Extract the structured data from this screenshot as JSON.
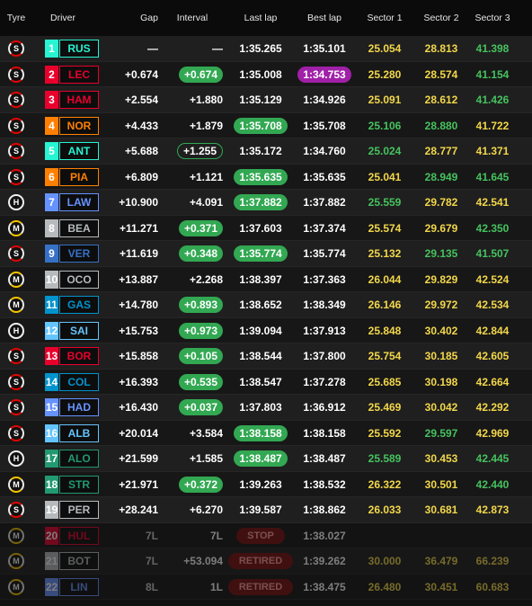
{
  "header": {
    "tyre": "Tyre",
    "driver": "Driver",
    "gap": "Gap",
    "interval": "Interval",
    "last_lap": "Last lap",
    "best_lap": "Best lap",
    "sector1": "Sector 1",
    "sector2": "Sector 2",
    "sector3": "Sector 3"
  },
  "colors": {
    "personal_best": "#32a852",
    "overall_best": "#a020a8",
    "sector_yellow": "#f2d74a",
    "sector_green": "#46c25e",
    "retired": "#7a1010"
  },
  "rows": [
    {
      "tyre": "S",
      "tyre_type": "soft",
      "pos": "1",
      "code": "RUS",
      "team_color": "#27f4d2",
      "gap": "—",
      "interval": "—",
      "interval_style": "",
      "last": "1:35.265",
      "last_style": "",
      "best": "1:35.101",
      "best_style": "",
      "s1": "25.054",
      "s1c": "yellow",
      "s2": "28.813",
      "s2c": "yellow",
      "s3": "41.398",
      "s3c": "green"
    },
    {
      "tyre": "S",
      "tyre_type": "soft",
      "pos": "2",
      "code": "LEC",
      "team_color": "#e8002d",
      "gap": "+0.674",
      "interval": "+0.674",
      "interval_style": "green",
      "last": "1:35.008",
      "last_style": "",
      "best": "1:34.753",
      "best_style": "purple",
      "s1": "25.280",
      "s1c": "yellow",
      "s2": "28.574",
      "s2c": "yellow",
      "s3": "41.154",
      "s3c": "green"
    },
    {
      "tyre": "S",
      "tyre_type": "soft",
      "pos": "3",
      "code": "HAM",
      "team_color": "#e8002d",
      "gap": "+2.554",
      "interval": "+1.880",
      "interval_style": "",
      "last": "1:35.129",
      "last_style": "",
      "best": "1:34.926",
      "best_style": "",
      "s1": "25.091",
      "s1c": "yellow",
      "s2": "28.612",
      "s2c": "yellow",
      "s3": "41.426",
      "s3c": "green"
    },
    {
      "tyre": "S",
      "tyre_type": "soft",
      "pos": "4",
      "code": "NOR",
      "team_color": "#ff8000",
      "gap": "+4.433",
      "interval": "+1.879",
      "interval_style": "",
      "last": "1:35.708",
      "last_style": "green",
      "best": "1:35.708",
      "best_style": "",
      "s1": "25.106",
      "s1c": "green",
      "s2": "28.880",
      "s2c": "green",
      "s3": "41.722",
      "s3c": "yellow"
    },
    {
      "tyre": "S",
      "tyre_type": "soft",
      "pos": "5",
      "code": "ANT",
      "team_color": "#27f4d2",
      "gap": "+5.688",
      "interval": "+1.255",
      "interval_style": "outline",
      "last": "1:35.172",
      "last_style": "",
      "best": "1:34.760",
      "best_style": "",
      "s1": "25.024",
      "s1c": "green",
      "s2": "28.777",
      "s2c": "yellow",
      "s3": "41.371",
      "s3c": "yellow"
    },
    {
      "tyre": "S",
      "tyre_type": "soft",
      "pos": "6",
      "code": "PIA",
      "team_color": "#ff8000",
      "gap": "+6.809",
      "interval": "+1.121",
      "interval_style": "",
      "last": "1:35.635",
      "last_style": "green",
      "best": "1:35.635",
      "best_style": "",
      "s1": "25.041",
      "s1c": "yellow",
      "s2": "28.949",
      "s2c": "green",
      "s3": "41.645",
      "s3c": "green"
    },
    {
      "tyre": "H",
      "tyre_type": "hard",
      "pos": "7",
      "code": "LAW",
      "team_color": "#6692ff",
      "gap": "+10.900",
      "interval": "+4.091",
      "interval_style": "",
      "last": "1:37.882",
      "last_style": "green",
      "best": "1:37.882",
      "best_style": "",
      "s1": "25.559",
      "s1c": "green",
      "s2": "29.782",
      "s2c": "yellow",
      "s3": "42.541",
      "s3c": "yellow"
    },
    {
      "tyre": "M",
      "tyre_type": "medium",
      "pos": "8",
      "code": "BEA",
      "team_color": "#b6babd",
      "gap": "+11.271",
      "interval": "+0.371",
      "interval_style": "green",
      "last": "1:37.603",
      "last_style": "",
      "best": "1:37.374",
      "best_style": "",
      "s1": "25.574",
      "s1c": "yellow",
      "s2": "29.679",
      "s2c": "yellow",
      "s3": "42.350",
      "s3c": "green"
    },
    {
      "tyre": "S",
      "tyre_type": "soft",
      "pos": "9",
      "code": "VER",
      "team_color": "#3671c6",
      "gap": "+11.619",
      "interval": "+0.348",
      "interval_style": "green",
      "last": "1:35.774",
      "last_style": "green",
      "best": "1:35.774",
      "best_style": "",
      "s1": "25.132",
      "s1c": "yellow",
      "s2": "29.135",
      "s2c": "green",
      "s3": "41.507",
      "s3c": "green"
    },
    {
      "tyre": "M",
      "tyre_type": "medium",
      "pos": "10",
      "code": "OCO",
      "team_color": "#b6babd",
      "gap": "+13.887",
      "interval": "+2.268",
      "interval_style": "",
      "last": "1:38.397",
      "last_style": "",
      "best": "1:37.363",
      "best_style": "",
      "s1": "26.044",
      "s1c": "yellow",
      "s2": "29.829",
      "s2c": "yellow",
      "s3": "42.524",
      "s3c": "yellow"
    },
    {
      "tyre": "M",
      "tyre_type": "medium",
      "pos": "11",
      "code": "GAS",
      "team_color": "#0093cc",
      "gap": "+14.780",
      "interval": "+0.893",
      "interval_style": "green",
      "last": "1:38.652",
      "last_style": "",
      "best": "1:38.349",
      "best_style": "",
      "s1": "26.146",
      "s1c": "yellow",
      "s2": "29.972",
      "s2c": "yellow",
      "s3": "42.534",
      "s3c": "yellow"
    },
    {
      "tyre": "H",
      "tyre_type": "hard",
      "pos": "12",
      "code": "SAI",
      "team_color": "#64c4ff",
      "gap": "+15.753",
      "interval": "+0.973",
      "interval_style": "green",
      "last": "1:39.094",
      "last_style": "",
      "best": "1:37.913",
      "best_style": "",
      "s1": "25.848",
      "s1c": "yellow",
      "s2": "30.402",
      "s2c": "yellow",
      "s3": "42.844",
      "s3c": "yellow"
    },
    {
      "tyre": "S",
      "tyre_type": "soft",
      "pos": "13",
      "code": "BOR",
      "team_color": "#e8002d",
      "gap": "+15.858",
      "interval": "+0.105",
      "interval_style": "green",
      "last": "1:38.544",
      "last_style": "",
      "best": "1:37.800",
      "best_style": "",
      "s1": "25.754",
      "s1c": "yellow",
      "s2": "30.185",
      "s2c": "yellow",
      "s3": "42.605",
      "s3c": "yellow"
    },
    {
      "tyre": "S",
      "tyre_type": "soft",
      "pos": "14",
      "code": "COL",
      "team_color": "#0093cc",
      "gap": "+16.393",
      "interval": "+0.535",
      "interval_style": "green",
      "last": "1:38.547",
      "last_style": "",
      "best": "1:37.278",
      "best_style": "",
      "s1": "25.685",
      "s1c": "yellow",
      "s2": "30.198",
      "s2c": "yellow",
      "s3": "42.664",
      "s3c": "yellow"
    },
    {
      "tyre": "S",
      "tyre_type": "soft",
      "pos": "15",
      "code": "HAD",
      "team_color": "#6692ff",
      "gap": "+16.430",
      "interval": "+0.037",
      "interval_style": "green",
      "last": "1:37.803",
      "last_style": "",
      "best": "1:36.912",
      "best_style": "",
      "s1": "25.469",
      "s1c": "yellow",
      "s2": "30.042",
      "s2c": "yellow",
      "s3": "42.292",
      "s3c": "yellow"
    },
    {
      "tyre": "S",
      "tyre_type": "soft",
      "pos": "16",
      "code": "ALB",
      "team_color": "#64c4ff",
      "gap": "+20.014",
      "interval": "+3.584",
      "interval_style": "",
      "last": "1:38.158",
      "last_style": "green",
      "best": "1:38.158",
      "best_style": "",
      "s1": "25.592",
      "s1c": "yellow",
      "s2": "29.597",
      "s2c": "green",
      "s3": "42.969",
      "s3c": "yellow"
    },
    {
      "tyre": "H",
      "tyre_type": "hard",
      "pos": "17",
      "code": "ALO",
      "team_color": "#229971",
      "gap": "+21.599",
      "interval": "+1.585",
      "interval_style": "",
      "last": "1:38.487",
      "last_style": "green",
      "best": "1:38.487",
      "best_style": "",
      "s1": "25.589",
      "s1c": "green",
      "s2": "30.453",
      "s2c": "yellow",
      "s3": "42.445",
      "s3c": "green"
    },
    {
      "tyre": "M",
      "tyre_type": "medium",
      "pos": "18",
      "code": "STR",
      "team_color": "#229971",
      "gap": "+21.971",
      "interval": "+0.372",
      "interval_style": "green",
      "last": "1:39.263",
      "last_style": "",
      "best": "1:38.532",
      "best_style": "",
      "s1": "26.322",
      "s1c": "yellow",
      "s2": "30.501",
      "s2c": "yellow",
      "s3": "42.440",
      "s3c": "green"
    },
    {
      "tyre": "S",
      "tyre_type": "soft",
      "pos": "19",
      "code": "PER",
      "team_color": "#b6babd",
      "gap": "+28.241",
      "interval": "+6.270",
      "interval_style": "",
      "last": "1:39.587",
      "last_style": "",
      "best": "1:38.862",
      "best_style": "",
      "s1": "26.033",
      "s1c": "yellow",
      "s2": "30.681",
      "s2c": "yellow",
      "s3": "42.873",
      "s3c": "yellow"
    },
    {
      "tyre": "M",
      "tyre_type": "medium",
      "pos": "20",
      "code": "HUL",
      "team_color": "#e8002d",
      "gap": "7L",
      "interval": "7L",
      "interval_style": "",
      "last": "STOP",
      "last_style": "stop",
      "best": "1:38.027",
      "best_style": "",
      "s1": "",
      "s1c": "",
      "s2": "",
      "s2c": "",
      "s3": "",
      "s3c": "",
      "dim": true
    },
    {
      "tyre": "M",
      "tyre_type": "medium",
      "pos": "21",
      "code": "BOT",
      "team_color": "#b6babd",
      "gap": "7L",
      "interval": "+53.094",
      "interval_style": "",
      "last": "RETIRED",
      "last_style": "stop",
      "best": "1:39.262",
      "best_style": "",
      "s1": "30.000",
      "s1c": "yellow",
      "s2": "36.479",
      "s2c": "yellow",
      "s3": "66.239",
      "s3c": "yellow",
      "dim": true
    },
    {
      "tyre": "M",
      "tyre_type": "medium",
      "pos": "22",
      "code": "LIN",
      "team_color": "#6692ff",
      "gap": "8L",
      "interval": "1L",
      "interval_style": "",
      "last": "RETIRED",
      "last_style": "stop",
      "best": "1:38.475",
      "best_style": "",
      "s1": "26.480",
      "s1c": "yellow",
      "s2": "30.451",
      "s2c": "yellow",
      "s3": "60.683",
      "s3c": "yellow",
      "dim": true
    }
  ]
}
